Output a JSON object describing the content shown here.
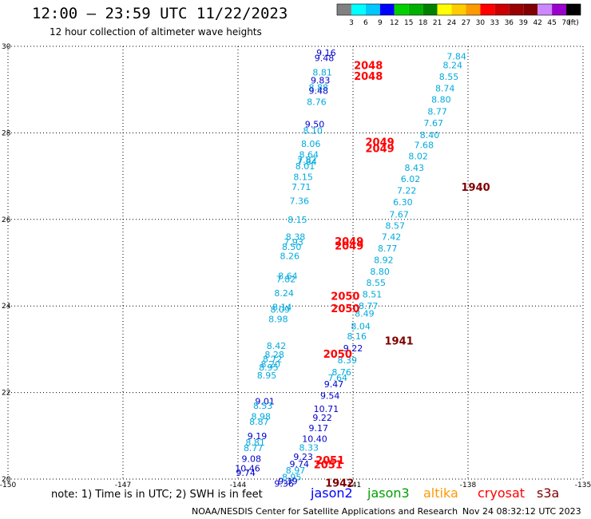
{
  "header": {
    "title": "12:00 — 23:59 UTC 11/22/2023",
    "subtitle": "12 hour collection of altimeter wave heights"
  },
  "footer": {
    "note": "note:  1) Time is in UTC;  2) SWH is in feet",
    "credit": "NOAA/NESDIS Center for Satellite Applications and Research",
    "stamp": "Nov 24 08:32:12 UTC 2023"
  },
  "satellites": [
    {
      "name": "jason2",
      "color": "#0000ff"
    },
    {
      "name": "jason3",
      "color": "#00a000"
    },
    {
      "name": "altika",
      "color": "#ff9900"
    },
    {
      "name": "cryosat",
      "color": "#ff0000"
    },
    {
      "name": "s3a",
      "color": "#800000"
    }
  ],
  "colorbar": {
    "labels": [
      "3",
      "6",
      "9",
      "12",
      "15",
      "18",
      "21",
      "24",
      "27",
      "30",
      "33",
      "36",
      "39",
      "42",
      "45",
      "70",
      "(ft)"
    ],
    "colors": [
      "#808080",
      "#00ffff",
      "#00c8ff",
      "#0000ff",
      "#00d000",
      "#00b000",
      "#008000",
      "#ffff00",
      "#ffcc00",
      "#ff9900",
      "#ff0000",
      "#cc0000",
      "#990000",
      "#800000",
      "#cc88ff",
      "#9900cc",
      "#000000"
    ]
  },
  "chart_data": {
    "type": "scatter",
    "x_axis": {
      "range": [
        -150,
        -135
      ],
      "ticks": [
        "-150",
        "-147",
        "-144",
        "-141",
        "-138",
        "-135"
      ]
    },
    "y_axis": {
      "range": [
        20,
        30
      ],
      "ticks": [
        "20",
        "22",
        "24",
        "26",
        "28",
        "30"
      ]
    },
    "grid": true,
    "labels": [
      {
        "x": -138.3,
        "y": 29.77,
        "t": "7.84",
        "c": "#00aadd"
      },
      {
        "x": -138.4,
        "y": 29.57,
        "t": "8.24",
        "c": "#00aadd"
      },
      {
        "x": -138.5,
        "y": 29.3,
        "t": "8.55",
        "c": "#00aadd"
      },
      {
        "x": -138.6,
        "y": 29.03,
        "t": "8.74",
        "c": "#00aadd"
      },
      {
        "x": -138.7,
        "y": 28.77,
        "t": "8.80",
        "c": "#00aadd"
      },
      {
        "x": -138.8,
        "y": 28.5,
        "t": "8.77",
        "c": "#00aadd"
      },
      {
        "x": -138.9,
        "y": 28.23,
        "t": "7.67",
        "c": "#00aadd"
      },
      {
        "x": -139.0,
        "y": 27.95,
        "t": "8.40",
        "c": "#00aadd"
      },
      {
        "x": -139.15,
        "y": 27.72,
        "t": "7.68",
        "c": "#00aadd"
      },
      {
        "x": -139.3,
        "y": 27.46,
        "t": "8.02",
        "c": "#00aadd"
      },
      {
        "x": -139.4,
        "y": 27.2,
        "t": "8.43",
        "c": "#00aadd"
      },
      {
        "x": -139.5,
        "y": 26.94,
        "t": "6.02",
        "c": "#00aadd"
      },
      {
        "x": -139.6,
        "y": 26.67,
        "t": "7.22",
        "c": "#00aadd"
      },
      {
        "x": -139.7,
        "y": 26.4,
        "t": "6.30",
        "c": "#00aadd"
      },
      {
        "x": -139.8,
        "y": 26.12,
        "t": "7.67",
        "c": "#00aadd"
      },
      {
        "x": -139.9,
        "y": 25.86,
        "t": "8.57",
        "c": "#00aadd"
      },
      {
        "x": -140.0,
        "y": 25.6,
        "t": "7.42",
        "c": "#00aadd"
      },
      {
        "x": -140.1,
        "y": 25.33,
        "t": "8.77",
        "c": "#00aadd"
      },
      {
        "x": -140.2,
        "y": 25.06,
        "t": "8.92",
        "c": "#00aadd"
      },
      {
        "x": -140.3,
        "y": 24.8,
        "t": "8.80",
        "c": "#00aadd"
      },
      {
        "x": -140.4,
        "y": 24.54,
        "t": "8.55",
        "c": "#00aadd"
      },
      {
        "x": -140.5,
        "y": 24.27,
        "t": "8.51",
        "c": "#00aadd"
      },
      {
        "x": -140.6,
        "y": 24.0,
        "t": "8.77",
        "c": "#00aadd"
      },
      {
        "x": -140.7,
        "y": 23.83,
        "t": "8.49",
        "c": "#00aadd"
      },
      {
        "x": -140.8,
        "y": 23.53,
        "t": "8.04",
        "c": "#00aadd"
      },
      {
        "x": -140.9,
        "y": 23.3,
        "t": "8.16",
        "c": "#00aadd"
      },
      {
        "x": -141.0,
        "y": 23.03,
        "t": "9.22",
        "c": "#0000cc"
      },
      {
        "x": -141.15,
        "y": 22.75,
        "t": "8.39",
        "c": "#00aadd"
      },
      {
        "x": -141.3,
        "y": 22.47,
        "t": "8.76",
        "c": "#00aadd"
      },
      {
        "x": -141.4,
        "y": 22.34,
        "t": "7.64",
        "c": "#00aadd"
      },
      {
        "x": -141.5,
        "y": 22.2,
        "t": "9.47",
        "c": "#0000cc"
      },
      {
        "x": -141.6,
        "y": 21.93,
        "t": "9.54",
        "c": "#0000cc"
      },
      {
        "x": -141.7,
        "y": 21.62,
        "t": "10.71",
        "c": "#0000cc"
      },
      {
        "x": -141.8,
        "y": 21.42,
        "t": "9.22",
        "c": "#0000cc"
      },
      {
        "x": -141.9,
        "y": 21.18,
        "t": "9.17",
        "c": "#0000cc"
      },
      {
        "x": -142.0,
        "y": 20.93,
        "t": "10.40",
        "c": "#0000cc"
      },
      {
        "x": -142.15,
        "y": 20.73,
        "t": "8.33",
        "c": "#00aadd"
      },
      {
        "x": -142.3,
        "y": 20.52,
        "t": "9.23",
        "c": "#0000cc"
      },
      {
        "x": -142.4,
        "y": 20.35,
        "t": "9.74",
        "c": "#0000cc"
      },
      {
        "x": -142.5,
        "y": 20.2,
        "t": "8.97",
        "c": "#00aadd"
      },
      {
        "x": -142.6,
        "y": 20.05,
        "t": "8.95",
        "c": "#00aadd"
      },
      {
        "x": -142.7,
        "y": 19.95,
        "t": "9.39",
        "c": "#0000cc"
      },
      {
        "x": -142.8,
        "y": 19.9,
        "t": "9.36",
        "c": "#0000cc"
      },
      {
        "x": -141.7,
        "y": 29.85,
        "t": "9.16",
        "c": "#0000cc"
      },
      {
        "x": -141.75,
        "y": 29.73,
        "t": "9.48",
        "c": "#0000cc"
      },
      {
        "x": -141.8,
        "y": 29.4,
        "t": "8.81",
        "c": "#00aadd"
      },
      {
        "x": -141.85,
        "y": 29.22,
        "t": "9.83",
        "c": "#0000cc"
      },
      {
        "x": -141.9,
        "y": 29.05,
        "t": "8.88",
        "c": "#00aadd"
      },
      {
        "x": -141.9,
        "y": 28.98,
        "t": "9.48",
        "c": "#0000cc"
      },
      {
        "x": -141.95,
        "y": 28.72,
        "t": "8.76",
        "c": "#00aadd"
      },
      {
        "x": -142.0,
        "y": 28.2,
        "t": "9.50",
        "c": "#0000cc"
      },
      {
        "x": -142.05,
        "y": 28.05,
        "t": "8.10",
        "c": "#00aadd"
      },
      {
        "x": -142.1,
        "y": 27.75,
        "t": "8.06",
        "c": "#00aadd"
      },
      {
        "x": -142.15,
        "y": 27.5,
        "t": "8.64",
        "c": "#00aadd"
      },
      {
        "x": -142.2,
        "y": 27.38,
        "t": "7.82",
        "c": "#00aadd"
      },
      {
        "x": -142.2,
        "y": 27.33,
        "t": "7.84",
        "c": "#00aadd"
      },
      {
        "x": -142.25,
        "y": 27.23,
        "t": "8.01",
        "c": "#00aadd"
      },
      {
        "x": -142.3,
        "y": 26.98,
        "t": "8.15",
        "c": "#00aadd"
      },
      {
        "x": -142.35,
        "y": 26.75,
        "t": "7.71",
        "c": "#00aadd"
      },
      {
        "x": -142.4,
        "y": 26.43,
        "t": "7.36",
        "c": "#00aadd"
      },
      {
        "x": -142.45,
        "y": 26.0,
        "t": "8.15",
        "c": "#00aadd"
      },
      {
        "x": -142.5,
        "y": 25.6,
        "t": "8.38",
        "c": "#00aadd"
      },
      {
        "x": -142.55,
        "y": 25.48,
        "t": "7.93",
        "c": "#00aadd"
      },
      {
        "x": -142.6,
        "y": 25.37,
        "t": "8.50",
        "c": "#00aadd"
      },
      {
        "x": -142.65,
        "y": 25.16,
        "t": "8.26",
        "c": "#00aadd"
      },
      {
        "x": -142.7,
        "y": 24.7,
        "t": "8.64",
        "c": "#00aadd"
      },
      {
        "x": -142.75,
        "y": 24.62,
        "t": "7.82",
        "c": "#00aadd"
      },
      {
        "x": -142.8,
        "y": 24.3,
        "t": "8.24",
        "c": "#00aadd"
      },
      {
        "x": -142.85,
        "y": 23.98,
        "t": "8.14",
        "c": "#00aadd"
      },
      {
        "x": -142.9,
        "y": 23.92,
        "t": "8.09",
        "c": "#00aadd"
      },
      {
        "x": -142.95,
        "y": 23.7,
        "t": "8.98",
        "c": "#00aadd"
      },
      {
        "x": -143.0,
        "y": 23.08,
        "t": "8.42",
        "c": "#00aadd"
      },
      {
        "x": -143.05,
        "y": 22.88,
        "t": "8.28",
        "c": "#00aadd"
      },
      {
        "x": -143.1,
        "y": 22.78,
        "t": "8.72",
        "c": "#00aadd"
      },
      {
        "x": -143.15,
        "y": 22.66,
        "t": "8.20",
        "c": "#00aadd"
      },
      {
        "x": -143.2,
        "y": 22.58,
        "t": "8.95",
        "c": "#00aadd"
      },
      {
        "x": -143.25,
        "y": 22.4,
        "t": "8.95",
        "c": "#00aadd"
      },
      {
        "x": -143.3,
        "y": 21.8,
        "t": "9.01",
        "c": "#0000cc"
      },
      {
        "x": -143.35,
        "y": 21.7,
        "t": "8.53",
        "c": "#00aadd"
      },
      {
        "x": -143.4,
        "y": 21.45,
        "t": "8.98",
        "c": "#00aadd"
      },
      {
        "x": -143.45,
        "y": 21.33,
        "t": "8.87",
        "c": "#00aadd"
      },
      {
        "x": -143.5,
        "y": 21.0,
        "t": "9.19",
        "c": "#0000cc"
      },
      {
        "x": -143.55,
        "y": 20.85,
        "t": "8.81",
        "c": "#00aadd"
      },
      {
        "x": -143.6,
        "y": 20.72,
        "t": "8.77",
        "c": "#00aadd"
      },
      {
        "x": -143.65,
        "y": 20.47,
        "t": "9.08",
        "c": "#0000cc"
      },
      {
        "x": -143.75,
        "y": 20.25,
        "t": "10.46",
        "c": "#0000cc"
      },
      {
        "x": -143.8,
        "y": 20.15,
        "t": "9.74",
        "c": "#0000cc"
      },
      {
        "x": -140.6,
        "y": 29.55,
        "t": "2048",
        "c": "#ff0000",
        "bold": true
      },
      {
        "x": -140.6,
        "y": 29.3,
        "t": "2048",
        "c": "#ff0000",
        "bold": true
      },
      {
        "x": -140.3,
        "y": 27.78,
        "t": "2049",
        "c": "#ff0000",
        "bold": true
      },
      {
        "x": -140.3,
        "y": 27.63,
        "t": "2049",
        "c": "#ff0000",
        "bold": true
      },
      {
        "x": -137.8,
        "y": 26.73,
        "t": "1940",
        "c": "#800000",
        "bold": true
      },
      {
        "x": -141.1,
        "y": 25.48,
        "t": "2049",
        "c": "#ff0000",
        "bold": true
      },
      {
        "x": -141.1,
        "y": 25.38,
        "t": "2049",
        "c": "#ff0000",
        "bold": true
      },
      {
        "x": -141.2,
        "y": 24.22,
        "t": "2050",
        "c": "#ff0000",
        "bold": true
      },
      {
        "x": -141.2,
        "y": 23.93,
        "t": "2050",
        "c": "#ff0000",
        "bold": true
      },
      {
        "x": -139.8,
        "y": 23.18,
        "t": "1941",
        "c": "#800000",
        "bold": true
      },
      {
        "x": -141.4,
        "y": 22.88,
        "t": "2050",
        "c": "#ff0000",
        "bold": true
      },
      {
        "x": -141.6,
        "y": 20.42,
        "t": "2051",
        "c": "#ff0000",
        "bold": true
      },
      {
        "x": -141.65,
        "y": 20.32,
        "t": "2051",
        "c": "#ff0000",
        "bold": true
      },
      {
        "x": -141.35,
        "y": 19.9,
        "t": "1942",
        "c": "#800000",
        "bold": true
      }
    ]
  }
}
